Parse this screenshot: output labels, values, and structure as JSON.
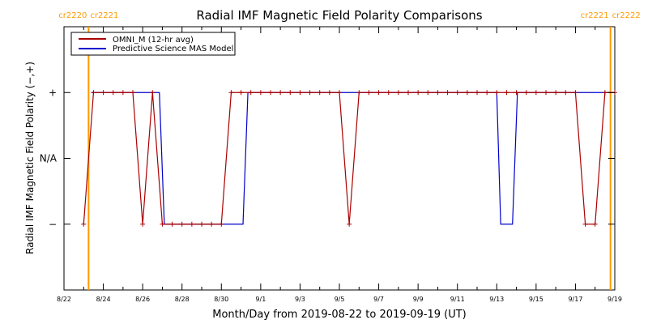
{
  "chart_data": {
    "type": "line",
    "title": "Radial IMF Magnetic Field Polarity Comparisons",
    "xlabel": "Month/Day from 2019-08-22 to 2019-09-19 (UT)",
    "ylabel": "Radial IMF Magnetic Field Polarity (−,+)",
    "xlim": [
      0,
      28
    ],
    "ylim": [
      -2,
      2
    ],
    "y_ticks": [
      {
        "value": 1,
        "label": "+"
      },
      {
        "value": 0,
        "label": "N/A"
      },
      {
        "value": -1,
        "label": "−"
      }
    ],
    "x_ticks": [
      {
        "value": 0,
        "label": "8/22"
      },
      {
        "value": 2,
        "label": "8/24"
      },
      {
        "value": 4,
        "label": "8/26"
      },
      {
        "value": 6,
        "label": "8/28"
      },
      {
        "value": 8,
        "label": "8/30"
      },
      {
        "value": 10,
        "label": "9/1"
      },
      {
        "value": 12,
        "label": "9/3"
      },
      {
        "value": 14,
        "label": "9/5"
      },
      {
        "value": 16,
        "label": "9/7"
      },
      {
        "value": 18,
        "label": "9/9"
      },
      {
        "value": 20,
        "label": "9/11"
      },
      {
        "value": 22,
        "label": "9/13"
      },
      {
        "value": 24,
        "label": "9/15"
      },
      {
        "value": 26,
        "label": "9/17"
      },
      {
        "value": 28,
        "label": "9/19"
      }
    ],
    "carrington_markers": [
      {
        "x": 1.25,
        "label_left": "cr2220",
        "label_right": "cr2221"
      },
      {
        "x": 27.78,
        "label_left": "cr2221",
        "label_right": "cr2222"
      }
    ],
    "legend_position": "top-left",
    "series": [
      {
        "name": "OMNI_M (12-hr avg)",
        "color": "#aa0000",
        "marker": "plus",
        "x": [
          1.0,
          1.5,
          2.0,
          2.5,
          3.0,
          3.5,
          4.0,
          4.5,
          5.0,
          5.5,
          6.0,
          6.5,
          7.0,
          7.5,
          8.0,
          8.5,
          9.0,
          9.5,
          10.0,
          10.5,
          11.0,
          11.5,
          12.0,
          12.5,
          13.0,
          13.5,
          14.0,
          14.5,
          15.0,
          15.5,
          16.0,
          16.5,
          17.0,
          17.5,
          18.0,
          18.5,
          19.0,
          19.5,
          20.0,
          20.5,
          21.0,
          21.5,
          22.0,
          22.5,
          23.0,
          23.5,
          24.0,
          24.5,
          25.0,
          25.5,
          26.0,
          26.5,
          27.0,
          27.5,
          28.0
        ],
        "y": [
          -1,
          1,
          1,
          1,
          1,
          1,
          -1,
          1,
          -1,
          -1,
          -1,
          -1,
          -1,
          -1,
          -1,
          1,
          1,
          1,
          1,
          1,
          1,
          1,
          1,
          1,
          1,
          1,
          1,
          -1,
          1,
          1,
          1,
          1,
          1,
          1,
          1,
          1,
          1,
          1,
          1,
          1,
          1,
          1,
          1,
          1,
          1,
          1,
          1,
          1,
          1,
          1,
          1,
          -1,
          -1,
          1,
          1
        ]
      },
      {
        "name": "Predictive Science MAS Model",
        "color": "#0000cc",
        "steps": [
          {
            "x0": 1.4,
            "x1": 4.85,
            "y": 1
          },
          {
            "x0": 5.1,
            "x1": 9.1,
            "y": -1
          },
          {
            "x0": 9.35,
            "x1": 22.0,
            "y": 1
          },
          {
            "x0": 22.2,
            "x1": 22.8,
            "y": -1
          },
          {
            "x0": 23.05,
            "x1": 28.0,
            "y": 1
          }
        ]
      }
    ]
  }
}
